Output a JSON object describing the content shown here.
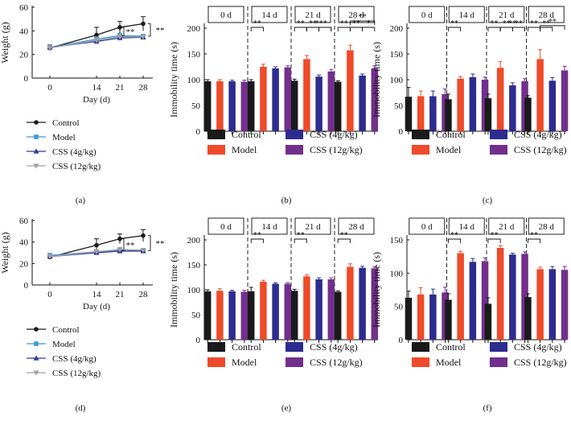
{
  "colors": {
    "control": "#1a1a1a",
    "model": "#ef4a2a",
    "css4": "#2d2c8f",
    "css12": "#722f8c",
    "line_control": "#1a1a1a",
    "line_model": "#3d9ad6",
    "line_css4": "#2f3899",
    "line_css12": "#a0a0a0"
  },
  "chart_data": [
    {
      "panel": "(a)",
      "type": "line",
      "xlabel": "Day (d)",
      "ylabel": "Weight (g)",
      "x": [
        0,
        14,
        21,
        28
      ],
      "xticks": [
        "0",
        "14",
        "21",
        "28"
      ],
      "yticks": [
        "0",
        "20",
        "40",
        "60"
      ],
      "ylim": [
        0,
        60
      ],
      "series": [
        {
          "name": "Control",
          "values": [
            25.5,
            36.5,
            43,
            46
          ],
          "err": [
            2.5,
            6.5,
            5,
            6
          ]
        },
        {
          "name": "Model",
          "values": [
            26,
            33,
            36,
            35.5
          ],
          "err": [
            2,
            2,
            2,
            1.5
          ]
        },
        {
          "name": "CSS (4g/kg)",
          "values": [
            26,
            31,
            34,
            34.5
          ],
          "err": [
            2,
            2,
            2,
            1.5
          ]
        },
        {
          "name": "CSS (12g/kg)",
          "values": [
            25.5,
            32,
            35,
            35
          ],
          "err": [
            2,
            2,
            2,
            1.5
          ]
        }
      ],
      "annotations": [
        "**",
        "**"
      ]
    },
    {
      "panel": "(b)",
      "type": "bar",
      "ylabel": "Immobility time (s)",
      "yticks": [
        "0",
        "50",
        "100",
        "150",
        "200"
      ],
      "ylim": [
        0,
        200
      ],
      "groups": [
        "0 d",
        "14 d",
        "21 d",
        "28 d"
      ],
      "series": [
        {
          "name": "Control",
          "values": [
            97,
            97,
            98,
            96
          ],
          "err": [
            3,
            3,
            3,
            2
          ]
        },
        {
          "name": "Model",
          "values": [
            97,
            125,
            140,
            157
          ],
          "err": [
            3,
            5,
            7,
            10
          ]
        },
        {
          "name": "CSS (4g/kg)",
          "values": [
            97,
            122,
            106,
            108
          ],
          "err": [
            2,
            3,
            3,
            3
          ]
        },
        {
          "name": "CSS (12g/kg)",
          "values": [
            96,
            124,
            116,
            122
          ],
          "err": [
            3,
            3,
            4,
            5
          ]
        }
      ],
      "annotations": [
        "**",
        "**",
        "**",
        "**",
        "*",
        "**",
        "**",
        "**",
        "*"
      ]
    },
    {
      "panel": "(c)",
      "type": "bar",
      "ylabel": "Immobility time (s)",
      "yticks": [
        "0",
        "50",
        "100",
        "150",
        "200"
      ],
      "ylim": [
        0,
        200
      ],
      "groups": [
        "0 d",
        "14 d",
        "21 d",
        "28 d"
      ],
      "series": [
        {
          "name": "Control",
          "values": [
            67,
            62,
            64,
            65
          ],
          "err": [
            18,
            10,
            8,
            4
          ]
        },
        {
          "name": "Model",
          "values": [
            68,
            102,
            123,
            140
          ],
          "err": [
            10,
            4,
            12,
            18
          ]
        },
        {
          "name": "CSS (4g/kg)",
          "values": [
            68,
            105,
            89,
            98
          ],
          "err": [
            10,
            6,
            5,
            6
          ]
        },
        {
          "name": "CSS (12g/kg)",
          "values": [
            72,
            100,
            97,
            118
          ],
          "err": [
            10,
            5,
            5,
            8
          ]
        }
      ],
      "annotations": [
        "**",
        "**",
        "**",
        "**",
        "**",
        "**",
        "**",
        "**"
      ]
    },
    {
      "panel": "(d)",
      "type": "line",
      "xlabel": "Day (d)",
      "ylabel": "Weight (g)",
      "x": [
        0,
        14,
        21,
        28
      ],
      "xticks": [
        "0",
        "14",
        "21",
        "28"
      ],
      "yticks": [
        "0",
        "20",
        "40",
        "60"
      ],
      "ylim": [
        0,
        60
      ],
      "series": [
        {
          "name": "Control",
          "values": [
            26,
            37,
            43,
            46
          ],
          "err": [
            2,
            6,
            4.5,
            5.5
          ]
        },
        {
          "name": "Model",
          "values": [
            27.5,
            31,
            32,
            32
          ],
          "err": [
            2,
            2,
            2,
            1.5
          ]
        },
        {
          "name": "CSS (4g/kg)",
          "values": [
            26.5,
            30,
            31.5,
            31.5
          ],
          "err": [
            2,
            2,
            2,
            1.5
          ]
        },
        {
          "name": "CSS (12g/kg)",
          "values": [
            26.5,
            31,
            33,
            32.5
          ],
          "err": [
            2,
            2,
            2,
            1.5
          ]
        }
      ],
      "annotations": [
        "**",
        "**"
      ]
    },
    {
      "panel": "(e)",
      "type": "bar",
      "ylabel": "Immobility time (s)",
      "yticks": [
        "0",
        "50",
        "100",
        "150",
        "200"
      ],
      "ylim": [
        0,
        200
      ],
      "groups": [
        "0 d",
        "14 d",
        "21 d",
        "28 d"
      ],
      "series": [
        {
          "name": "Control",
          "values": [
            97,
            97,
            98,
            96
          ],
          "err": [
            3,
            8,
            3,
            2
          ]
        },
        {
          "name": "Model",
          "values": [
            98,
            116,
            127,
            146
          ],
          "err": [
            4,
            3,
            3,
            6
          ]
        },
        {
          "name": "CSS (4g/kg)",
          "values": [
            97,
            112,
            121,
            144
          ],
          "err": [
            2,
            2,
            3,
            3
          ]
        },
        {
          "name": "CSS (12g/kg)",
          "values": [
            96,
            112,
            121,
            143
          ],
          "err": [
            3,
            2,
            3,
            3
          ]
        }
      ],
      "annotations": [
        "**",
        "**",
        "**"
      ]
    },
    {
      "panel": "(f)",
      "type": "bar",
      "ylabel": "Immobility time (s)",
      "yticks": [
        "0",
        "50",
        "100",
        "150"
      ],
      "ylim": [
        0,
        150
      ],
      "groups": [
        "0 d",
        "14 d",
        "21 d",
        "28 d"
      ],
      "series": [
        {
          "name": "Control",
          "values": [
            63,
            60,
            54,
            64
          ],
          "err": [
            10,
            9,
            9,
            5
          ]
        },
        {
          "name": "Model",
          "values": [
            68,
            130,
            138,
            106
          ],
          "err": [
            10,
            3,
            3,
            3
          ]
        },
        {
          "name": "CSS (4g/kg)",
          "values": [
            68,
            117,
            128,
            106
          ],
          "err": [
            8,
            5,
            2,
            4
          ]
        },
        {
          "name": "CSS (12g/kg)",
          "values": [
            71,
            118,
            129,
            105
          ],
          "err": [
            8,
            5,
            3,
            5
          ]
        }
      ],
      "annotations": [
        "**",
        "**",
        "**"
      ]
    }
  ]
}
